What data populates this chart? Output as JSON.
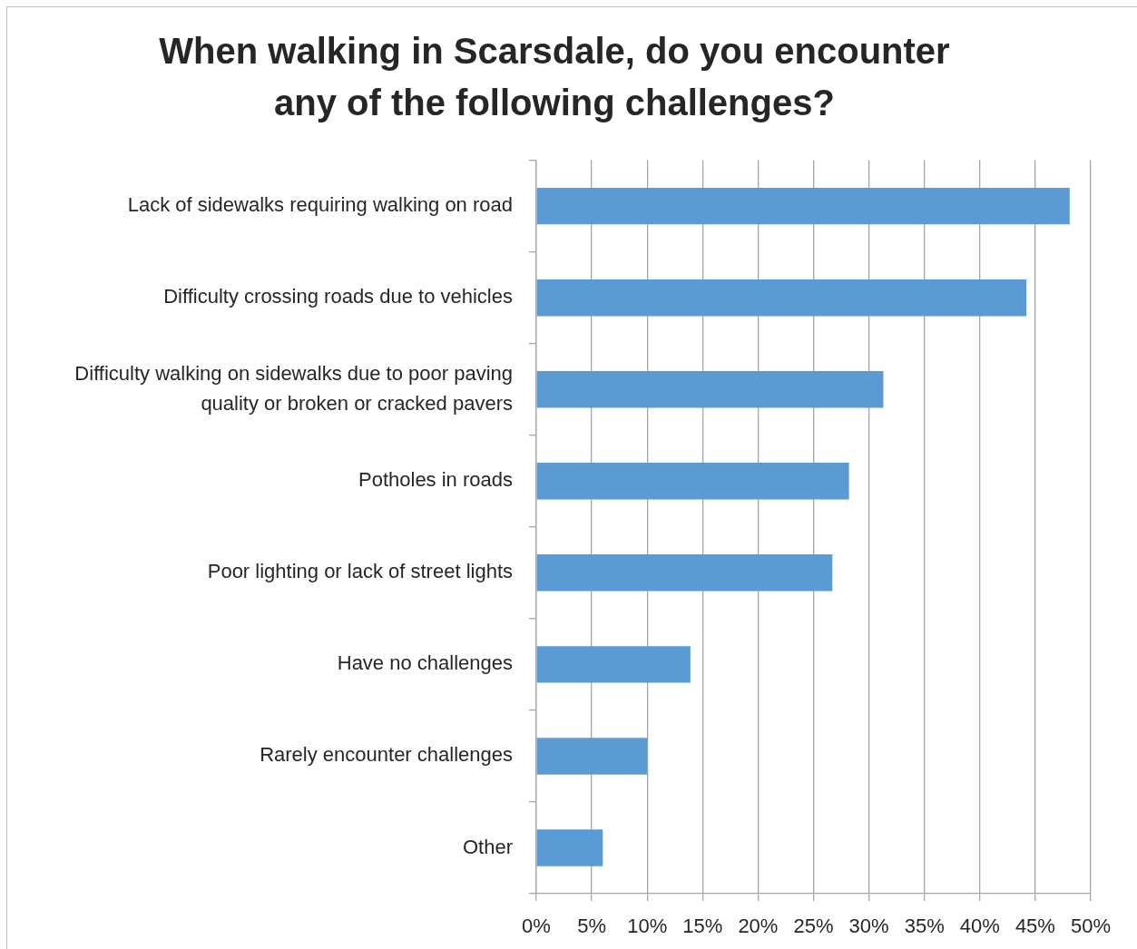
{
  "chart_data": {
    "type": "bar",
    "orientation": "horizontal",
    "title": "When walking in Scarsdale, do you encounter any of the following challenges?",
    "categories": [
      "Lack of sidewalks requiring walking on road",
      "Difficulty crossing roads due to vehicles",
      "Difficulty walking on sidewalks due to poor paving quality or broken or cracked pavers",
      "Potholes in roads",
      "Poor lighting or lack of street lights",
      "Have no challenges",
      "Rarely encounter challenges",
      "Other"
    ],
    "values": [
      48.1,
      44.2,
      31.3,
      28.2,
      26.7,
      13.9,
      10.0,
      6.0
    ],
    "color": "#5b9bd5",
    "xlim": [
      0,
      50
    ],
    "xticks": [
      {
        "value": 0,
        "label": "0%"
      },
      {
        "value": 5,
        "label": "5%"
      },
      {
        "value": 10,
        "label": "10%"
      },
      {
        "value": 15,
        "label": "15%"
      },
      {
        "value": 20,
        "label": "20%"
      },
      {
        "value": 25,
        "label": "25%"
      },
      {
        "value": 30,
        "label": "30%"
      },
      {
        "value": 35,
        "label": "35%"
      },
      {
        "value": 40,
        "label": "40%"
      },
      {
        "value": 45,
        "label": "45%"
      },
      {
        "value": 50,
        "label": "50%"
      }
    ],
    "grid": "x"
  }
}
